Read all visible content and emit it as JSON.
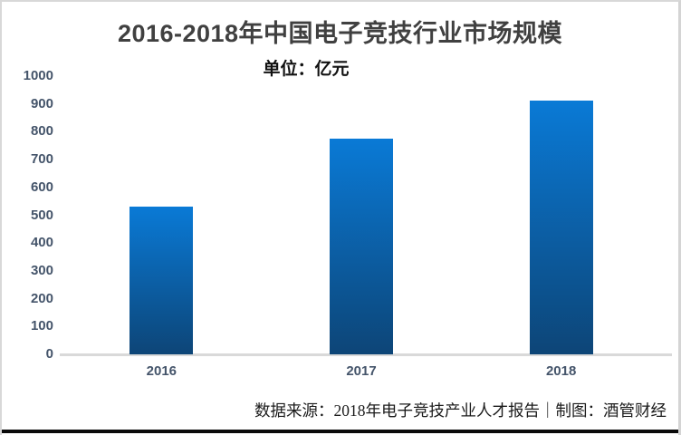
{
  "header": {
    "title": "2016-2018年中国电子竞技行业市场规模",
    "subtitle": "单位：亿元"
  },
  "footer": {
    "text": "数据来源：2018年电子竞技产业人才报告｜制图：酒管财经"
  },
  "colors": {
    "bar_gradient_top": "#0a7ad6",
    "bar_gradient_bottom": "#0d4577",
    "axis_line": "#d9d9d9",
    "tick_label": "#44546a",
    "title_text": "#404040"
  },
  "chart_data": {
    "type": "bar",
    "title": "2016-2018年中国电子竞技行业市场规模",
    "subtitle": "单位：亿元",
    "unit": "亿元",
    "categories": [
      "2016",
      "2017",
      "2018"
    ],
    "values": [
      532,
      775,
      912
    ],
    "xlabel": "",
    "ylabel": "",
    "ylim": [
      0,
      1000
    ],
    "yticks": [
      0,
      100,
      200,
      300,
      400,
      500,
      600,
      700,
      800,
      900,
      1000
    ],
    "grid": false,
    "legend": "none",
    "source_note": "数据来源：2018年电子竞技产业人才报告｜制图：酒管财经"
  }
}
